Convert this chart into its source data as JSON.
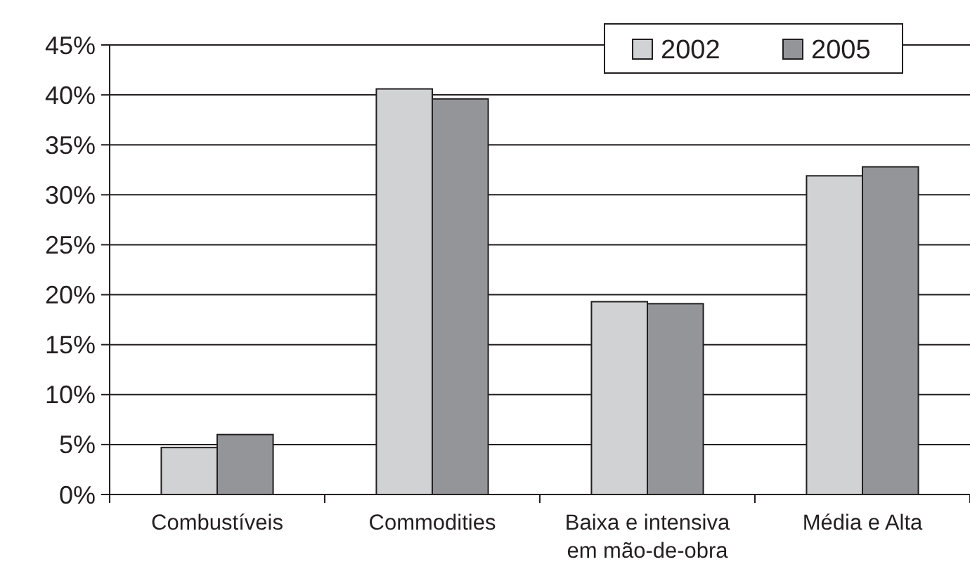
{
  "chart_data": {
    "type": "bar",
    "categories": [
      "Combustíveis",
      "Commodities",
      "Baixa e intensiva em mão-de-obra",
      "Média e Alta"
    ],
    "series": [
      {
        "name": "2002",
        "color": "#d1d2d4",
        "values": [
          4.7,
          40.6,
          19.3,
          31.9
        ]
      },
      {
        "name": "2005",
        "color": "#939598",
        "values": [
          6.0,
          39.6,
          19.1,
          32.8
        ]
      }
    ],
    "ylim": [
      0,
      45
    ],
    "yticks": [
      {
        "value": 0,
        "label": "0%"
      },
      {
        "value": 5,
        "label": "5%"
      },
      {
        "value": 10,
        "label": "10%"
      },
      {
        "value": 15,
        "label": "15%"
      },
      {
        "value": 20,
        "label": "20%"
      },
      {
        "value": 25,
        "label": "25%"
      },
      {
        "value": 30,
        "label": "30%"
      },
      {
        "value": 35,
        "label": "35%"
      },
      {
        "value": 40,
        "label": "40%"
      },
      {
        "value": 45,
        "label": "45%"
      }
    ],
    "grid": "y",
    "legend": "top right"
  }
}
